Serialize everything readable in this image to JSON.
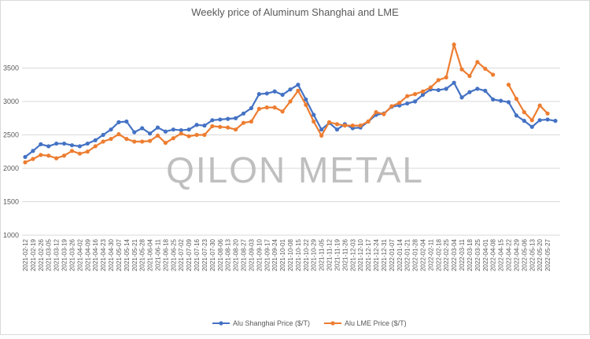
{
  "chart_data": {
    "type": "line",
    "title": "Weekly price of Aluminum Shanghai and LME",
    "watermark": "QILON METAL",
    "categories": [
      "2021-02-12",
      "2021-02-19",
      "2021-02-26",
      "2021-03-05",
      "2021-03-12",
      "2021-03-19",
      "2021-03-26",
      "2021-04-02",
      "2021-04-09",
      "2021-04-16",
      "2021-04-23",
      "2021-04-30",
      "2021-05-07",
      "2021-05-14",
      "2021-05-21",
      "2021-05-28",
      "2021-06-04",
      "2021-06-11",
      "2021-06-18",
      "2021-06-25",
      "2021-07-02",
      "2021-07-09",
      "2021-07-16",
      "2021-07-23",
      "2021-07-30",
      "2021-08-06",
      "2021-08-13",
      "2021-08-20",
      "2021-08-27",
      "2021-09-03",
      "2021-09-10",
      "2021-09-17",
      "2021-09-24",
      "2021-10-01",
      "2021-10-08",
      "2021-10-15",
      "2021-10-22",
      "2021-10-29",
      "2021-11-05",
      "2021-11-12",
      "2021-11-19",
      "2021-11-26",
      "2021-12-03",
      "2021-12-10",
      "2021-12-17",
      "2021-12-24",
      "2021-12-31",
      "2022-01-07",
      "2022-01-14",
      "2022-01-21",
      "2022-01-28",
      "2022-02-04",
      "2022-02-11",
      "2022-02-18",
      "2022-02-25",
      "2022-03-04",
      "2022-03-11",
      "2022-03-18",
      "2022-03-25",
      "2022-04-01",
      "2022-04-08",
      "2022-04-15",
      "2022-04-22",
      "2022-04-29",
      "2022-05-06",
      "2022-05-13",
      "2022-05-20",
      "2022-05-27",
      null
    ],
    "series": [
      {
        "name": "Alu Shanghai Price ($/T)",
        "color": "#4472c4",
        "values": [
          2170,
          2260,
          2360,
          2330,
          2370,
          2370,
          2345,
          2330,
          2370,
          2420,
          2500,
          2580,
          2690,
          2700,
          2540,
          2600,
          2520,
          2610,
          2550,
          2580,
          2570,
          2580,
          2650,
          2640,
          2720,
          2730,
          2740,
          2750,
          2820,
          2900,
          3110,
          3120,
          3150,
          3100,
          3180,
          3250,
          3030,
          2800,
          2580,
          2680,
          2580,
          2660,
          2600,
          2610,
          2700,
          2800,
          2820,
          2920,
          2940,
          2970,
          3000,
          3100,
          3180,
          3170,
          3190,
          3280,
          3060,
          3140,
          3190,
          3160,
          3030,
          3010,
          2990,
          2790,
          2710,
          2620,
          2720,
          2730,
          2710
        ]
      },
      {
        "name": "Alu LME Price ($/T)",
        "color": "#ed7d31",
        "values": [
          2090,
          2140,
          2200,
          2190,
          2150,
          2190,
          2260,
          2220,
          2250,
          2330,
          2400,
          2440,
          2510,
          2440,
          2400,
          2400,
          2410,
          2490,
          2380,
          2450,
          2520,
          2480,
          2500,
          2500,
          2630,
          2620,
          2610,
          2580,
          2680,
          2700,
          2890,
          2910,
          2910,
          2850,
          3000,
          3160,
          2950,
          2700,
          2490,
          2690,
          2660,
          2640,
          2640,
          2640,
          2700,
          2840,
          2810,
          2930,
          2980,
          3080,
          3110,
          3150,
          3210,
          3320,
          3360,
          3850,
          3480,
          3380,
          3590,
          3490,
          3400,
          null,
          3250,
          3040,
          2840,
          2720,
          2940,
          2820,
          null
        ]
      }
    ],
    "ylim": [
      1000,
      4000
    ],
    "yticks": [
      1000,
      1500,
      2000,
      2500,
      3000,
      3500
    ],
    "grid": true,
    "legend": "bottom"
  }
}
